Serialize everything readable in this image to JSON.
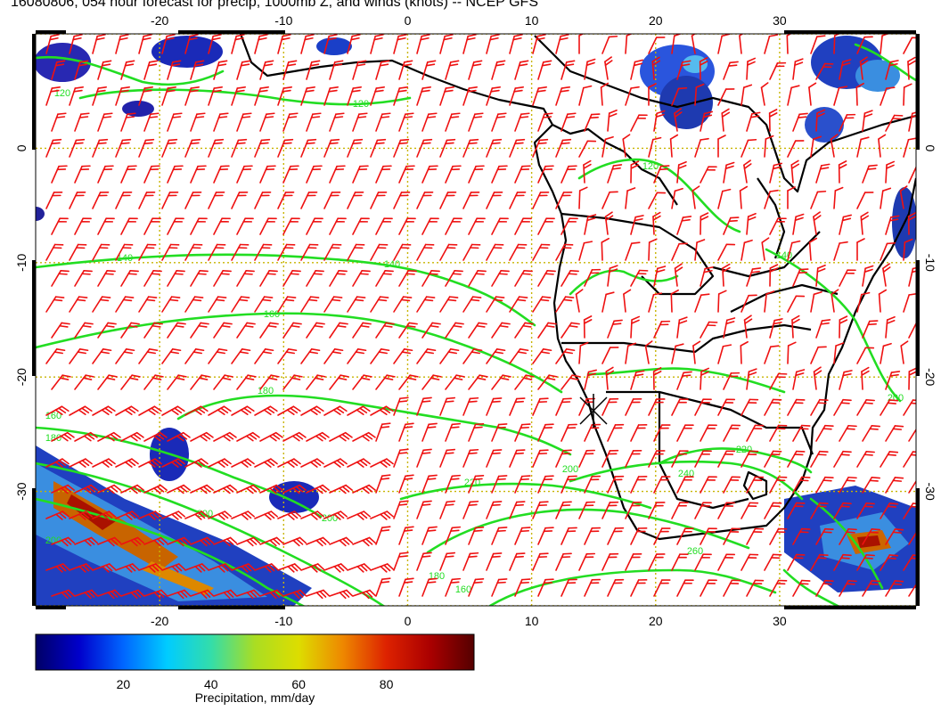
{
  "title": "16080806, 054 hour forecast for precip, 1000mb Z, and winds (knots) -- NCEP GFS",
  "map": {
    "lon_range": [
      -30,
      41
    ],
    "lat_range": [
      -40,
      10
    ],
    "lon_ticks": [
      -20,
      -10,
      0,
      10,
      20,
      30
    ],
    "lat_ticks": [
      0,
      -10,
      -20,
      -30
    ],
    "gridlines": true,
    "station_marker_lonlat": [
      14.5,
      -22.9
    ],
    "contour_color": "#22dd22",
    "barb_color": "#ee1111",
    "coast_color": "#000000",
    "grid_color": "#c8b400"
  },
  "contours": {
    "unit": "1000mb geopotential height (m)",
    "labels": [
      "120",
      "120",
      "140",
      "140",
      "160",
      "180",
      "160",
      "180",
      "200",
      "200",
      "220",
      "220",
      "240",
      "200",
      "260",
      "180",
      "140",
      "120",
      "200",
      "200",
      "160"
    ]
  },
  "colorbar": {
    "label": "Precipitation, mm/day",
    "ticks": [
      "20",
      "40",
      "60",
      "80"
    ],
    "tick_values": [
      20,
      40,
      60,
      80
    ],
    "range": [
      0,
      100
    ],
    "stops": [
      "#000066",
      "#0000cc",
      "#0066ff",
      "#00ccff",
      "#33ddaa",
      "#aadd22",
      "#dddd00",
      "#ee8800",
      "#dd2200",
      "#aa0000",
      "#550000"
    ]
  }
}
